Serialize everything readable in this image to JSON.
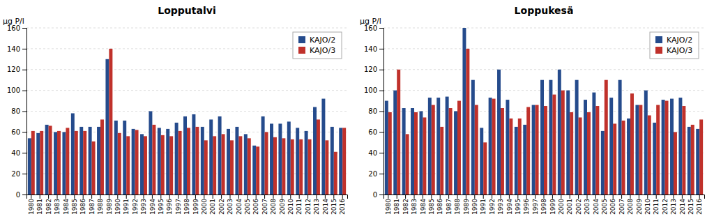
{
  "chart_data": [
    {
      "type": "bar",
      "title": "Lopputalvi",
      "ylabel": "μg P/l",
      "categories": [
        1980,
        1981,
        1982,
        1983,
        1984,
        1985,
        1986,
        1987,
        1988,
        1989,
        1990,
        1991,
        1992,
        1993,
        1994,
        1995,
        1996,
        1997,
        1998,
        1999,
        2000,
        2001,
        2002,
        2003,
        2004,
        2005,
        2006,
        2007,
        2008,
        2009,
        2010,
        2011,
        2012,
        2013,
        2014,
        2015,
        2016
      ],
      "series": [
        {
          "name": "KAJO/2",
          "color": "#254b8c",
          "values": [
            54,
            59,
            67,
            60,
            60,
            78,
            65,
            65,
            65,
            130,
            71,
            71,
            63,
            58,
            80,
            64,
            63,
            69,
            75,
            77,
            65,
            72,
            75,
            63,
            65,
            58,
            47,
            75,
            68,
            68,
            70,
            64,
            61,
            84,
            92,
            65,
            64
          ]
        },
        {
          "name": "KAJO/3",
          "color": "#c0312b",
          "values": [
            61,
            61,
            66,
            61,
            64,
            61,
            61,
            51,
            72,
            140,
            59,
            56,
            62,
            56,
            67,
            57,
            56,
            61,
            64,
            65,
            52,
            56,
            58,
            52,
            56,
            54,
            46,
            60,
            55,
            54,
            53,
            53,
            53,
            72,
            52,
            41,
            64
          ]
        }
      ],
      "ylim": [
        0,
        160
      ],
      "yticks": [
        0,
        20,
        40,
        60,
        80,
        100,
        120,
        140,
        160
      ],
      "grid": true,
      "legend": "upper right"
    },
    {
      "type": "bar",
      "title": "Loppukesä",
      "ylabel": "μg P/l",
      "categories": [
        1980,
        1981,
        1982,
        1983,
        1984,
        1985,
        1986,
        1987,
        1988,
        1989,
        1990,
        1991,
        1992,
        1993,
        1994,
        1995,
        1996,
        1997,
        1998,
        1999,
        2000,
        2001,
        2002,
        2003,
        2004,
        2005,
        2006,
        2007,
        2008,
        2009,
        2010,
        2011,
        2012,
        2013,
        2014,
        2015,
        2016
      ],
      "series": [
        {
          "name": "KAJO/2",
          "color": "#254b8c",
          "values": [
            90,
            100,
            83,
            83,
            80,
            93,
            93,
            94,
            80,
            160,
            110,
            64,
            93,
            120,
            91,
            65,
            67,
            86,
            110,
            110,
            120,
            100,
            110,
            91,
            98,
            61,
            93,
            110,
            73,
            86,
            100,
            69,
            91,
            92,
            93,
            65,
            63
          ]
        },
        {
          "name": "KAJO/3",
          "color": "#c0312b",
          "values": [
            79,
            120,
            58,
            79,
            74,
            86,
            65,
            83,
            90,
            140,
            86,
            50,
            92,
            83,
            73,
            73,
            84,
            86,
            85,
            96,
            100,
            79,
            74,
            79,
            85,
            110,
            68,
            71,
            97,
            86,
            76,
            86,
            90,
            60,
            85,
            67,
            72
          ]
        }
      ],
      "ylim": [
        0,
        160
      ],
      "yticks": [
        0,
        20,
        40,
        60,
        80,
        100,
        120,
        140,
        160
      ],
      "grid": true,
      "legend": "upper right"
    }
  ]
}
